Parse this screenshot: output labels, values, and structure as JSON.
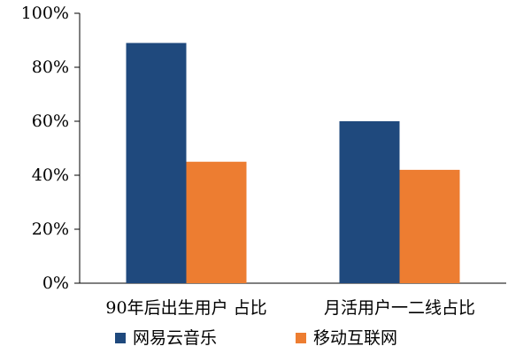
{
  "chart_data": {
    "type": "bar",
    "title": "",
    "xlabel": "",
    "ylabel": "",
    "categories": [
      "90年后出生用户 占比",
      "月活用户一二线占比"
    ],
    "series": [
      {
        "name": "网易云音乐",
        "color": "#1f497d",
        "values": [
          89,
          60
        ]
      },
      {
        "name": "移动互联网",
        "color": "#ed7d31",
        "values": [
          45,
          42
        ]
      }
    ],
    "ylim": [
      0,
      100
    ],
    "yticks": [
      "0%",
      "20%",
      "40%",
      "60%",
      "80%",
      "100%"
    ],
    "grid": false,
    "legend_position": "bottom"
  }
}
